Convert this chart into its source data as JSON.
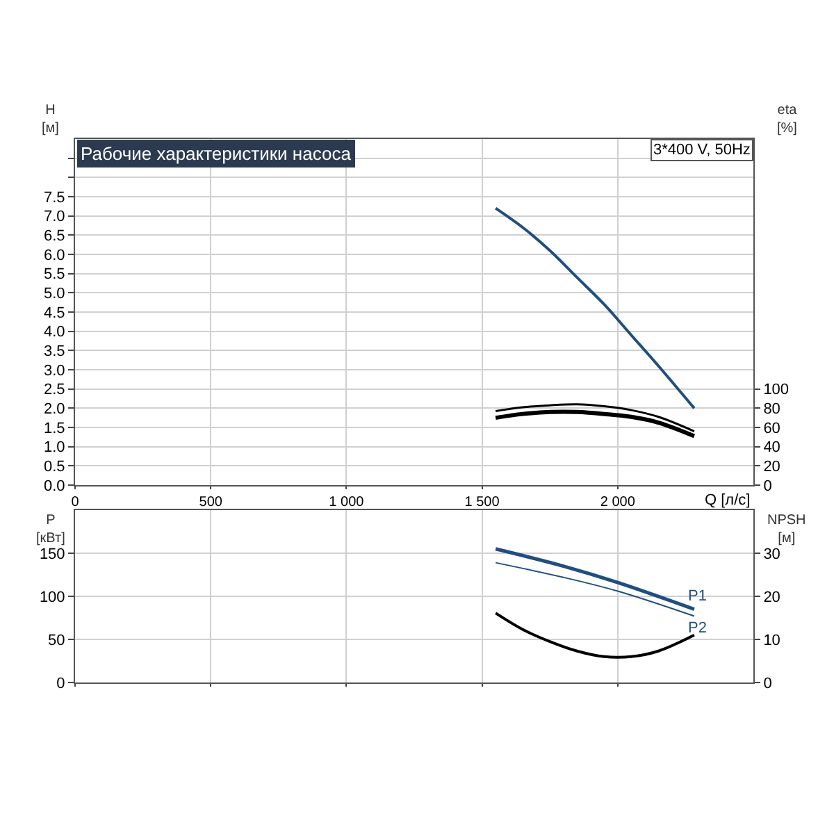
{
  "chart_data": [
    {
      "type": "line",
      "title": "Рабочие характеристики насоса",
      "annotations": [
        "3*400 V, 50Hz"
      ],
      "xlabel": "Q [л/с]",
      "ylabel": "H\n[м]",
      "y2label": "eta\n[%]",
      "xlim": [
        0,
        2500
      ],
      "xticks": [
        0,
        {
          "value": 500,
          "label": "500"
        },
        {
          "value": 1000,
          "label": "1 000"
        },
        {
          "value": 1500,
          "label": "1 500"
        },
        {
          "value": 2000,
          "label": "2 000"
        }
      ],
      "ylim": [
        0,
        9
      ],
      "yticks": [
        {
          "value": 0,
          "label": "0.0"
        },
        0.5,
        {
          "value": 1,
          "label": "1.0"
        },
        1.5,
        {
          "value": 2,
          "label": "2.0"
        },
        2.5,
        {
          "value": 3,
          "label": "3.0"
        },
        3.5,
        {
          "value": 4,
          "label": "4.0"
        },
        4.5,
        {
          "value": 5,
          "label": "5.0"
        },
        5.5,
        {
          "value": 6,
          "label": "6.0"
        },
        6.5,
        {
          "value": 7,
          "label": "7.0"
        },
        7.5,
        {
          "value": 8,
          "label": null
        },
        {
          "value": 8.5,
          "label": null
        }
      ],
      "y2lim": [
        0,
        360
      ],
      "y2ticks": [
        0,
        20,
        40,
        60,
        80,
        100
      ],
      "grid": true,
      "legend": false,
      "marker": "none",
      "line_style": "solid",
      "series": [
        {
          "color": "#1f4e80",
          "x": [
            1550,
            1650,
            1750,
            1850,
            1950,
            2050,
            2150,
            2282
          ],
          "values": [
            7.2,
            6.7,
            6.1,
            5.4,
            4.7,
            3.9,
            3.1,
            2.0
          ]
        },
        {
          "color": "#000000",
          "axis": "y2",
          "x": [
            1550,
            1650,
            1750,
            1850,
            1950,
            2050,
            2150,
            2282
          ],
          "values": [
            77,
            81,
            83,
            84,
            82,
            78,
            71,
            56
          ]
        },
        {
          "color": "#000000",
          "axis": "y2",
          "x": [
            1550,
            1650,
            1750,
            1850,
            1950,
            2050,
            2150,
            2282
          ],
          "values": [
            70,
            74,
            76,
            76,
            74,
            71,
            65,
            51
          ]
        }
      ]
    },
    {
      "type": "line",
      "ylabel": "P\n[кВт]",
      "y2label": "NPSH\n[м]",
      "tick_labels": "y",
      "xlim": [
        0,
        2500
      ],
      "xticks": [
        {
          "value": 0,
          "label": null
        },
        {
          "value": 500,
          "label": null
        },
        {
          "value": 1000,
          "label": null
        },
        {
          "value": 1500,
          "label": null
        },
        {
          "value": 2000,
          "label": null
        }
      ],
      "ylim": [
        0,
        200
      ],
      "yticks": [
        0,
        50,
        100,
        150
      ],
      "y2lim": [
        0,
        40
      ],
      "y2ticks": [
        0,
        10,
        20,
        30
      ],
      "grid": true,
      "legend": false,
      "marker": "none",
      "line_style": "solid",
      "series": [
        {
          "name": "P1",
          "color": "#1f4e80",
          "x": [
            1550,
            1800,
            2000,
            2282
          ],
          "values": [
            155,
            135,
            116,
            85
          ]
        },
        {
          "name": "P2",
          "color": "#1f4e80",
          "x": [
            1550,
            1800,
            2000,
            2282
          ],
          "values": [
            139,
            122,
            106,
            77
          ]
        },
        {
          "color": "#000000",
          "axis": "y2",
          "x": [
            1550,
            1650,
            1750,
            1850,
            1950,
            2050,
            2150,
            2282
          ],
          "values": [
            16.1,
            12.3,
            9.5,
            7.3,
            6.0,
            6.0,
            7.3,
            11.0
          ]
        }
      ]
    }
  ]
}
